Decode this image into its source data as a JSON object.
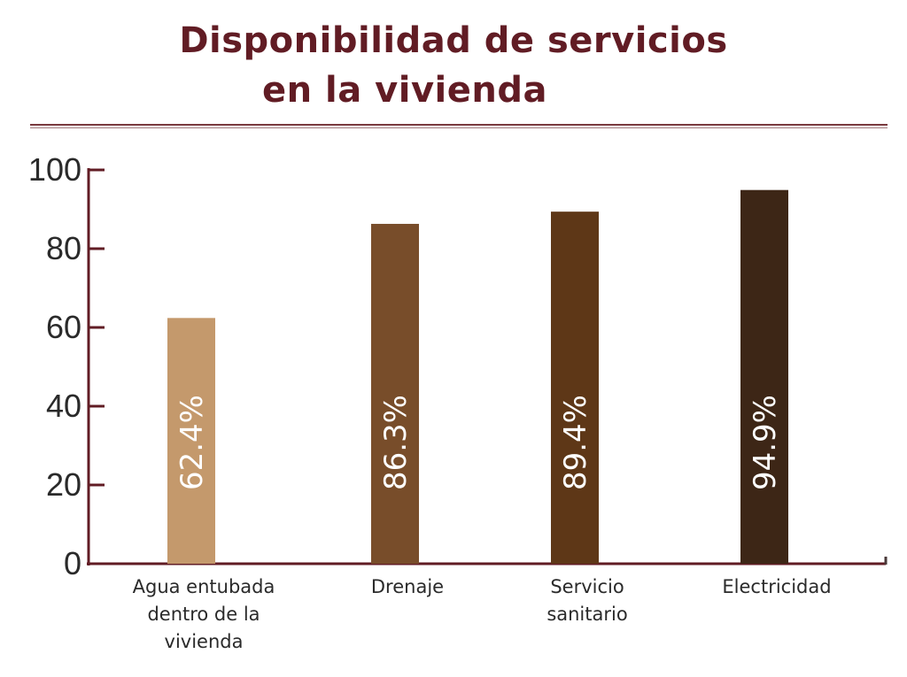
{
  "chart_data": {
    "type": "bar",
    "title": [
      "Disponibilidad de servicios",
      "en la vivienda"
    ],
    "categories": [
      [
        "Agua entubada",
        "dentro de la",
        "vivienda"
      ],
      [
        "Drenaje"
      ],
      [
        "Servicio",
        "sanitario"
      ],
      [
        "Electricidad"
      ]
    ],
    "values": [
      62.4,
      86.3,
      89.4,
      94.9
    ],
    "data_labels": [
      "62.4%",
      "86.3%",
      "89.4%",
      "94.9%"
    ],
    "bar_colors": [
      "#c4996c",
      "#784d2a",
      "#5e3717",
      "#3d2616"
    ],
    "yticks": [
      "0",
      "20",
      "40",
      "60",
      "80",
      "100"
    ],
    "ylim": [
      0,
      100
    ],
    "xlabel": "",
    "ylabel": "",
    "grid": false,
    "axis_color": "#611c24",
    "title_color": "#611c24"
  }
}
